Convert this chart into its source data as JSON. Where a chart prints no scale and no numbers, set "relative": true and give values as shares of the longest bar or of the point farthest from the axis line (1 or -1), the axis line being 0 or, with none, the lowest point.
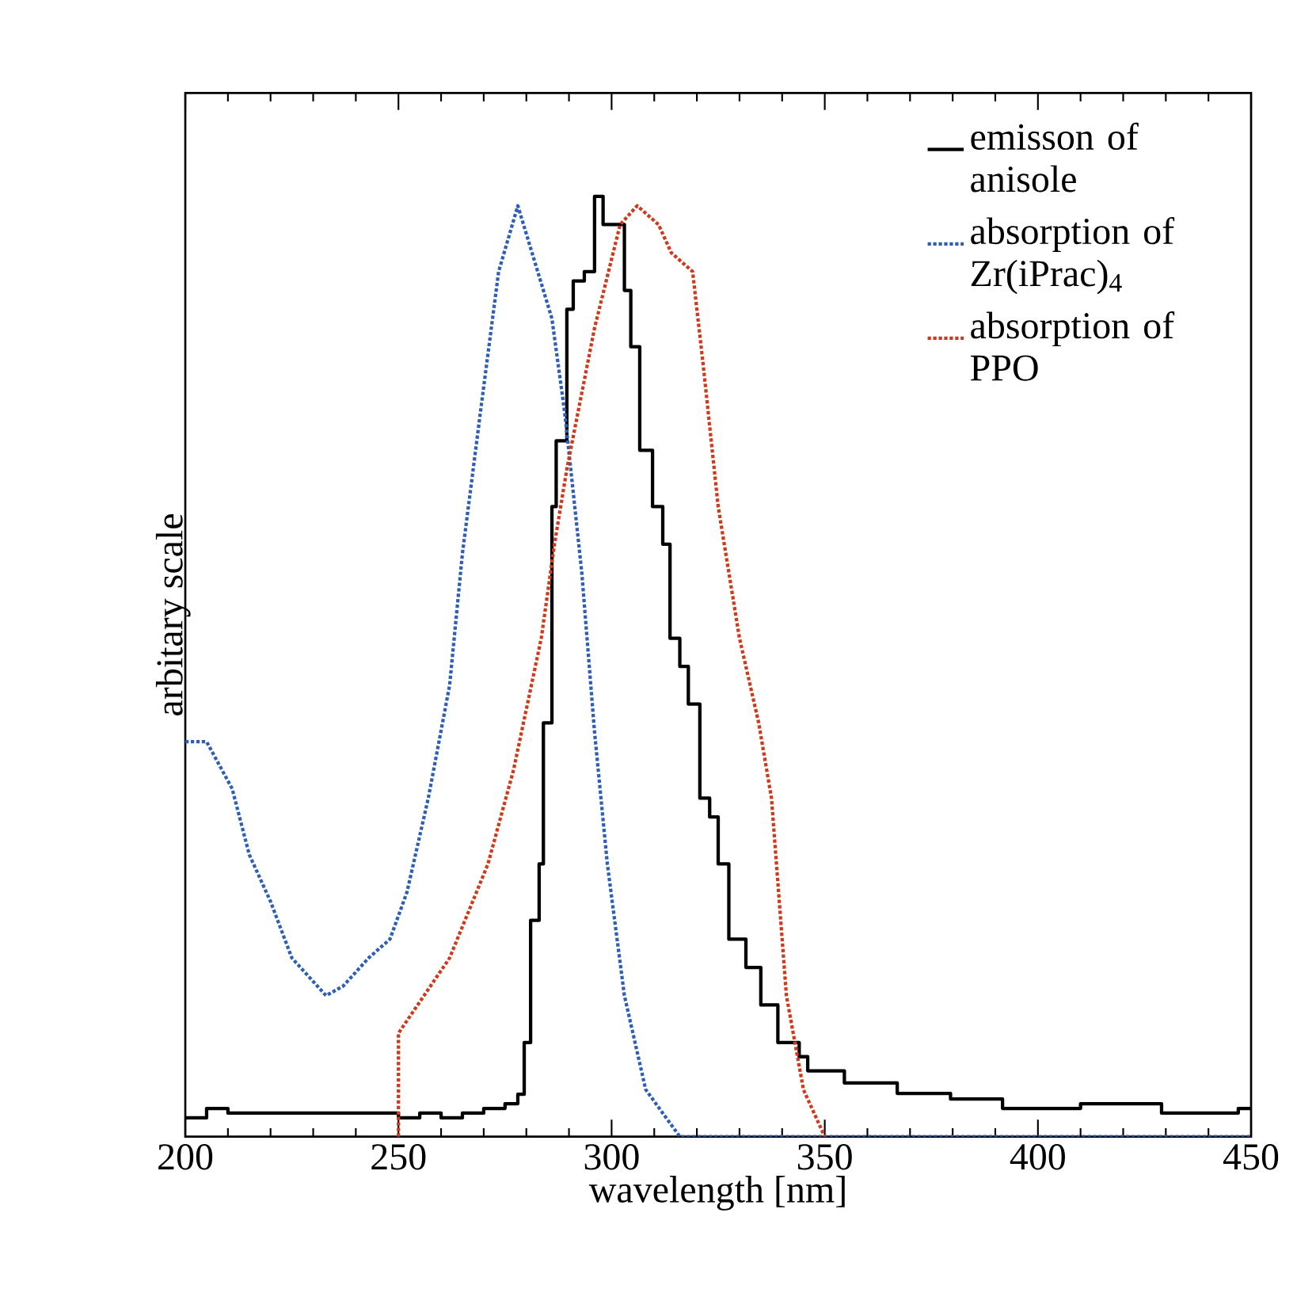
{
  "chart_data": {
    "type": "line",
    "xlabel": "wavelength [nm]",
    "ylabel": "arbitary scale",
    "relative": true,
    "xlim": [
      200,
      450
    ],
    "xticks": [
      200,
      250,
      300,
      350,
      400,
      450
    ],
    "grid": false,
    "legend": "top right",
    "series": [
      {
        "name": "emisson of anisole",
        "type": "step",
        "line_style": "solid",
        "color": "#000000",
        "x": [
          200,
          205,
          210,
          220,
          230,
          240,
          250,
          255,
          260,
          265,
          270,
          275,
          278,
          279.5,
          281,
          283,
          284,
          286,
          287,
          289.5,
          291,
          293.6,
          296,
          298,
          300.5,
          303,
          304.5,
          306.6,
          309.6,
          312,
          313.7,
          316,
          318,
          320.7,
          323,
          325,
          327.5,
          331.5,
          335,
          339,
          344,
          346,
          354.6,
          367,
          379.5,
          391.7,
          410,
          429,
          447,
          450
        ],
        "values": [
          0.02,
          0.03,
          0.025,
          0.025,
          0.025,
          0.025,
          0.02,
          0.025,
          0.02,
          0.025,
          0.03,
          0.035,
          0.045,
          0.1,
          0.23,
          0.29,
          0.44,
          0.67,
          0.74,
          0.88,
          0.91,
          0.92,
          1.0,
          0.97,
          0.97,
          0.9,
          0.84,
          0.73,
          0.67,
          0.63,
          0.53,
          0.5,
          0.46,
          0.36,
          0.34,
          0.29,
          0.21,
          0.18,
          0.14,
          0.1,
          0.085,
          0.07,
          0.057,
          0.046,
          0.04,
          0.03,
          0.035,
          0.025,
          0.03,
          0.03
        ]
      },
      {
        "name": "absorption of Zr(iPrac)$_{4}$",
        "line_style": "dotted",
        "color": "#2e5fb5",
        "x": [
          200,
          205,
          211,
          215,
          220,
          225,
          233,
          237,
          243,
          248,
          252,
          257,
          262,
          265,
          269.5,
          273.5,
          278,
          286,
          289,
          293,
          296,
          299,
          303,
          308,
          316,
          350,
          400,
          450
        ],
        "values": [
          0.42,
          0.42,
          0.37,
          0.3,
          0.25,
          0.19,
          0.15,
          0.16,
          0.19,
          0.21,
          0.26,
          0.36,
          0.48,
          0.62,
          0.78,
          0.92,
          0.99,
          0.87,
          0.77,
          0.6,
          0.43,
          0.29,
          0.15,
          0.05,
          0,
          0,
          0,
          0
        ]
      },
      {
        "name": "absorption of PPO",
        "line_style": "dotted",
        "color": "#d03a1c",
        "x": [
          250,
          250,
          262,
          271,
          277,
          283.5,
          286.6,
          289.5,
          296,
          302,
          306,
          311,
          314,
          319,
          321.5,
          325,
          330,
          334.5,
          337.5,
          341,
          345,
          350
        ],
        "values": [
          0,
          0.11,
          0.19,
          0.29,
          0.39,
          0.53,
          0.63,
          0.71,
          0.86,
          0.97,
          0.99,
          0.97,
          0.94,
          0.92,
          0.82,
          0.67,
          0.53,
          0.44,
          0.36,
          0.15,
          0.05,
          0
        ]
      }
    ]
  }
}
